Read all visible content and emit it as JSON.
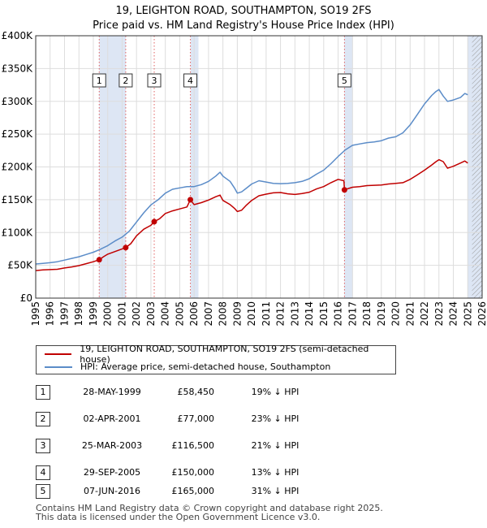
{
  "header": {
    "title": "19, LEIGHTON ROAD, SOUTHAMPTON, SO19 2FS",
    "subtitle": "Price paid vs. HM Land Registry's House Price Index (HPI)"
  },
  "colors": {
    "property": "#c00000",
    "hpi": "#5b8cc8",
    "band": "#dde6f4",
    "grid": "#dddddd",
    "marker_line": "#e06060"
  },
  "chart_data": {
    "type": "line",
    "title": "19, LEIGHTON ROAD, SOUTHAMPTON, SO19 2FS",
    "subtitle": "Price paid vs. HM Land Registry's House Price Index (HPI)",
    "xlim": [
      1995,
      2026
    ],
    "ylim": [
      0,
      400000
    ],
    "x_ticks": [
      "1995",
      "1996",
      "1997",
      "1998",
      "1999",
      "2000",
      "2001",
      "2002",
      "2003",
      "2004",
      "2005",
      "2006",
      "2007",
      "2008",
      "2009",
      "2010",
      "2011",
      "2012",
      "2013",
      "2014",
      "2015",
      "2016",
      "2017",
      "2018",
      "2019",
      "2020",
      "2021",
      "2022",
      "2023",
      "2024",
      "2025",
      "2026"
    ],
    "y_ticks": [
      {
        "value": 0,
        "label": "£0"
      },
      {
        "value": 50000,
        "label": "£50K"
      },
      {
        "value": 100000,
        "label": "£100K"
      },
      {
        "value": 150000,
        "label": "£150K"
      },
      {
        "value": 200000,
        "label": "£200K"
      },
      {
        "value": 250000,
        "label": "£250K"
      },
      {
        "value": 300000,
        "label": "£300K"
      },
      {
        "value": 350000,
        "label": "£350K"
      },
      {
        "value": 400000,
        "label": "£400K"
      }
    ],
    "grid": true,
    "shaded_bands": [
      {
        "from": 1999.41,
        "to": 2001.25
      },
      {
        "from": 2005.75,
        "to": 2006.3
      },
      {
        "from": 2016.43,
        "to": 2017.0
      },
      {
        "from": 2025.0,
        "to": 2026.0
      }
    ],
    "hatched_from": 2025.3,
    "series": [
      {
        "name": "19, LEIGHTON ROAD, SOUTHAMPTON, SO19 2FS (semi-detached house)",
        "color_key": "property",
        "x": [
          1995.0,
          1995.5,
          1996.0,
          1996.5,
          1997.0,
          1997.5,
          1998.0,
          1998.5,
          1999.0,
          1999.41,
          1999.7,
          2000.0,
          2000.5,
          2001.0,
          2001.25,
          2001.6,
          2002.0,
          2002.5,
          2003.0,
          2003.23,
          2003.6,
          2004.0,
          2004.5,
          2005.0,
          2005.5,
          2005.74,
          2006.0,
          2006.5,
          2007.0,
          2007.5,
          2007.8,
          2008.0,
          2008.5,
          2008.8,
          2009.0,
          2009.3,
          2009.6,
          2010.0,
          2010.5,
          2011.0,
          2011.5,
          2012.0,
          2012.5,
          2013.0,
          2013.5,
          2014.0,
          2014.5,
          2015.0,
          2015.5,
          2016.0,
          2016.4,
          2016.44,
          2016.7,
          2017.0,
          2017.5,
          2018.0,
          2018.5,
          2019.0,
          2019.5,
          2020.0,
          2020.5,
          2021.0,
          2021.5,
          2022.0,
          2022.5,
          2022.8,
          2023.0,
          2023.3,
          2023.6,
          2024.0,
          2024.5,
          2024.8,
          2025.0
        ],
        "values": [
          42000,
          43000,
          43500,
          44000,
          46000,
          47500,
          49500,
          52500,
          55500,
          58450,
          63000,
          67000,
          71000,
          75000,
          77000,
          83000,
          95000,
          105000,
          111000,
          116500,
          121000,
          129000,
          133000,
          136000,
          139000,
          150000,
          142500,
          145500,
          149500,
          154500,
          157000,
          149000,
          142500,
          137000,
          132000,
          134000,
          141000,
          149000,
          156000,
          158500,
          160500,
          161000,
          159000,
          158000,
          159500,
          161500,
          166500,
          170000,
          176000,
          181000,
          179000,
          165000,
          167000,
          169000,
          170000,
          171500,
          172000,
          172500,
          174000,
          175000,
          176000,
          181000,
          188000,
          195000,
          203000,
          208000,
          211000,
          208000,
          198000,
          201000,
          206000,
          209000,
          206000
        ]
      },
      {
        "name": "HPI: Average price, semi-detached house, Southampton",
        "color_key": "hpi",
        "x": [
          1995.0,
          1995.5,
          1996.0,
          1996.5,
          1997.0,
          1997.5,
          1998.0,
          1998.5,
          1999.0,
          1999.5,
          2000.0,
          2000.5,
          2001.0,
          2001.5,
          2002.0,
          2002.5,
          2003.0,
          2003.5,
          2004.0,
          2004.5,
          2005.0,
          2005.5,
          2006.0,
          2006.5,
          2007.0,
          2007.5,
          2007.8,
          2008.0,
          2008.5,
          2008.8,
          2009.0,
          2009.3,
          2009.6,
          2010.0,
          2010.5,
          2011.0,
          2011.5,
          2012.0,
          2012.5,
          2013.0,
          2013.5,
          2014.0,
          2014.5,
          2015.0,
          2015.5,
          2016.0,
          2016.5,
          2017.0,
          2017.5,
          2018.0,
          2018.5,
          2019.0,
          2019.5,
          2020.0,
          2020.5,
          2021.0,
          2021.5,
          2022.0,
          2022.5,
          2022.8,
          2023.0,
          2023.3,
          2023.6,
          2024.0,
          2024.5,
          2024.8,
          2025.0
        ],
        "values": [
          52000,
          53000,
          54000,
          55500,
          58000,
          60500,
          63000,
          66500,
          70000,
          74500,
          80000,
          87000,
          93000,
          102000,
          116000,
          130000,
          142000,
          150000,
          160000,
          166000,
          168000,
          170000,
          170000,
          173000,
          178000,
          186000,
          192000,
          186000,
          178000,
          168000,
          160000,
          162000,
          167000,
          174000,
          179000,
          177000,
          175000,
          174500,
          175000,
          176000,
          178000,
          182000,
          189000,
          195000,
          205000,
          216000,
          226000,
          233000,
          235000,
          237000,
          238000,
          240000,
          244000,
          246000,
          252000,
          264000,
          280000,
          296000,
          309000,
          315000,
          318000,
          308000,
          300000,
          302000,
          306000,
          312000,
          310000
        ]
      }
    ],
    "sales": [
      {
        "num": "1",
        "year": 1999.41,
        "price": 58450,
        "date": "28-MAY-1999",
        "price_label": "£58,450",
        "hpi_delta": "19% ↓ HPI"
      },
      {
        "num": "2",
        "year": 2001.25,
        "price": 77000,
        "date": "02-APR-2001",
        "price_label": "£77,000",
        "hpi_delta": "23% ↓ HPI"
      },
      {
        "num": "3",
        "year": 2003.23,
        "price": 116500,
        "date": "25-MAR-2003",
        "price_label": "£116,500",
        "hpi_delta": "21% ↓ HPI"
      },
      {
        "num": "4",
        "year": 2005.74,
        "price": 150000,
        "date": "29-SEP-2005",
        "price_label": "£150,000",
        "hpi_delta": "13% ↓ HPI"
      },
      {
        "num": "5",
        "year": 2016.44,
        "price": 165000,
        "date": "07-JUN-2016",
        "price_label": "£165,000",
        "hpi_delta": "31% ↓ HPI"
      }
    ]
  },
  "legend": {
    "property_label": "19, LEIGHTON ROAD, SOUTHAMPTON, SO19 2FS (semi-detached house)",
    "hpi_label": "HPI: Average price, semi-detached house, Southampton"
  },
  "footer": {
    "line1": "Contains HM Land Registry data © Crown copyright and database right 2025.",
    "line2": "This data is licensed under the Open Government Licence v3.0."
  }
}
